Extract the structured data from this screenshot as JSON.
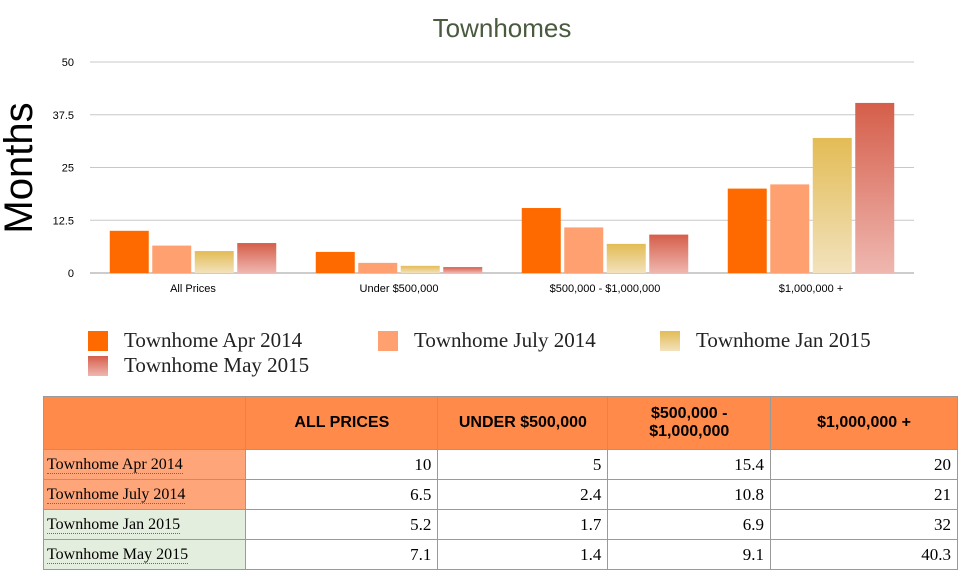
{
  "chart_data": {
    "type": "bar",
    "title": "Townhomes",
    "ylabel": "Months",
    "xlabel": "",
    "ylim": [
      0,
      50
    ],
    "yticks": [
      "0",
      "12.5",
      "25",
      "37.5",
      "50"
    ],
    "tick_values": [
      0,
      12.5,
      25,
      37.5,
      50
    ],
    "categories": [
      "All Prices",
      "Under $500,000",
      "$500,000 - $1,000,000",
      "$1,000,000 +"
    ],
    "series": [
      {
        "name": "Townhome Apr 2014",
        "values": [
          10,
          5,
          15.4,
          20
        ],
        "color": "#ff6a00",
        "color_bottom": "#ff6a00"
      },
      {
        "name": "Townhome July 2014",
        "values": [
          6.5,
          2.4,
          10.8,
          21
        ],
        "color": "#ffa070",
        "color_bottom": "#ffa070"
      },
      {
        "name": "Townhome Jan 2015",
        "values": [
          5.2,
          1.7,
          6.9,
          32
        ],
        "color": "#e3bc55",
        "color_bottom": "#f2e2bd"
      },
      {
        "name": "Townhome May 2015",
        "values": [
          7.1,
          1.4,
          9.1,
          40.3
        ],
        "color": "#d55e4a",
        "color_bottom": "#efb7b0"
      }
    ],
    "legend_position": "bottom",
    "grid": true
  },
  "table": {
    "headers": [
      "",
      "ALL PRICES",
      "UNDER $500,000",
      "$500,000 -\n$1,000,000",
      "$1,000,000 +"
    ],
    "rows": [
      {
        "label": "Townhome Apr 2014",
        "values": [
          "10",
          "5",
          "15.4",
          "20"
        ],
        "bg": "#ffa57a"
      },
      {
        "label": "Townhome July 2014",
        "values": [
          "6.5",
          "2.4",
          "10.8",
          "21"
        ],
        "bg": "#ffa57a"
      },
      {
        "label": "Townhome Jan 2015",
        "values": [
          "5.2",
          "1.7",
          "6.9",
          "32"
        ],
        "bg": "#e4eedf"
      },
      {
        "label": "Townhome May 2015",
        "values": [
          "7.1",
          "1.4",
          "9.1",
          "40.3"
        ],
        "bg": "#e4eedf"
      }
    ]
  }
}
